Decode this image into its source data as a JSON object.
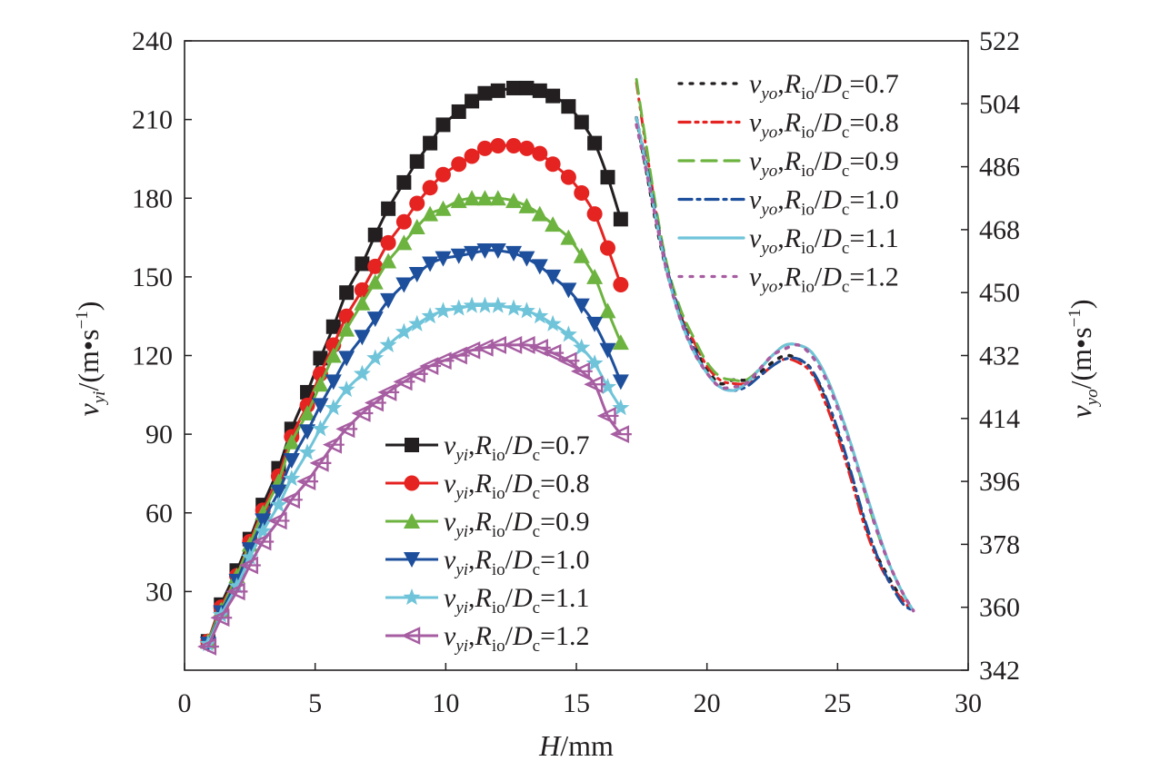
{
  "chart_data": [
    {
      "type": "line",
      "axis": "left",
      "x_label": {
        "main": "H",
        "unit": "/mm"
      },
      "y_label": {
        "var": "v",
        "sub": "yi",
        "unit": "/(m•s",
        "sup": "−1",
        "close": ")"
      },
      "xlim": [
        0,
        30
      ],
      "ylim": [
        0,
        240
      ],
      "x_ticks": [
        0,
        5,
        10,
        15,
        20,
        25,
        30
      ],
      "y_ticks": [
        30,
        60,
        90,
        120,
        150,
        180,
        210,
        240
      ],
      "legend_position": "lower-middle",
      "x": [
        0.9,
        1.4,
        2.0,
        2.5,
        3.0,
        3.6,
        4.1,
        4.7,
        5.2,
        5.7,
        6.2,
        6.8,
        7.3,
        7.8,
        8.4,
        8.9,
        9.4,
        9.9,
        10.5,
        11.0,
        11.5,
        12.0,
        12.6,
        13.1,
        13.6,
        14.1,
        14.7,
        15.2,
        15.7,
        16.2,
        16.7
      ],
      "series": [
        {
          "name": "0.7",
          "color": "#231f20",
          "marker": "square",
          "values": [
            11,
            25,
            38,
            50,
            63,
            77,
            92,
            106,
            119,
            131,
            144,
            155,
            166,
            176,
            186,
            194,
            201,
            208,
            213,
            217,
            220,
            221,
            222,
            222,
            221,
            219,
            215,
            209,
            201,
            188,
            172
          ]
        },
        {
          "name": "0.8",
          "color": "#e52321",
          "marker": "circle",
          "values": [
            11,
            24,
            36,
            49,
            61,
            74,
            89,
            101,
            113,
            124,
            135,
            145,
            154,
            163,
            171,
            178,
            184,
            189,
            193,
            196,
            199,
            200,
            200,
            199,
            197,
            193,
            188,
            182,
            174,
            161,
            147
          ]
        },
        {
          "name": "0.9",
          "color": "#6db33f",
          "marker": "triangle-up",
          "values": [
            11,
            23,
            36,
            48,
            60,
            72,
            87,
            98,
            109,
            120,
            130,
            140,
            148,
            156,
            163,
            169,
            174,
            176,
            179,
            180,
            180,
            180,
            179,
            177,
            174,
            170,
            165,
            158,
            150,
            137,
            125
          ]
        },
        {
          "name": "1.0",
          "color": "#1d4f9c",
          "marker": "triangle-down",
          "values": [
            10,
            22,
            34,
            46,
            57,
            68,
            80,
            91,
            101,
            110,
            119,
            127,
            134,
            141,
            147,
            151,
            155,
            157,
            158,
            159,
            160,
            160,
            159,
            157,
            154,
            150,
            145,
            139,
            132,
            122,
            110
          ]
        },
        {
          "name": "1.1",
          "color": "#6fc4d9",
          "marker": "star",
          "values": [
            10,
            21,
            32,
            43,
            53,
            63,
            73,
            83,
            92,
            100,
            107,
            113,
            119,
            124,
            129,
            132,
            135,
            137,
            138,
            139,
            139,
            139,
            138,
            137,
            135,
            132,
            128,
            123,
            117,
            108,
            100
          ]
        },
        {
          "name": "1.2",
          "color": "#a65da1",
          "marker": "triangle-left",
          "values": [
            9,
            20,
            30,
            40,
            49,
            57,
            65,
            72,
            79,
            86,
            92,
            98,
            102,
            106,
            110,
            113,
            116,
            118,
            120,
            122,
            123,
            124,
            124,
            124,
            123,
            121,
            118,
            114,
            109,
            97,
            90
          ]
        }
      ]
    },
    {
      "type": "line",
      "axis": "right",
      "y_label": {
        "var": "v",
        "sub": "yo",
        "unit": "/(m•s",
        "sup": "−1",
        "close": ")"
      },
      "ylim": [
        342,
        522
      ],
      "y_ticks": [
        342,
        360,
        378,
        396,
        414,
        432,
        450,
        468,
        486,
        504,
        522
      ],
      "legend_position": "top-right",
      "series": [
        {
          "name": "0.7",
          "color": "#231f20",
          "dash": "dotted",
          "x": [
            17.3,
            17.7,
            18.1,
            18.5,
            19.0,
            19.5,
            20.0,
            20.5,
            21.0,
            21.5,
            22.0,
            22.5,
            23.0,
            23.5,
            24.0,
            24.5,
            25.0,
            25.5,
            26.0,
            26.5,
            27.0,
            27.5,
            27.9
          ],
          "values": [
            500,
            484,
            468,
            455,
            443,
            435,
            428,
            424,
            425,
            425,
            427,
            430,
            432,
            431,
            428,
            420,
            410,
            398,
            385,
            375,
            368,
            362,
            359
          ]
        },
        {
          "name": "0.8",
          "color": "#e52321",
          "dash": "dash-dot-dot",
          "x": [
            17.3,
            17.7,
            18.1,
            18.5,
            19.0,
            19.5,
            20.0,
            20.5,
            21.0,
            21.5,
            22.0,
            22.5,
            23.0,
            23.5,
            24.0,
            24.5,
            25.0,
            25.5,
            26.0,
            26.5,
            27.0,
            27.5,
            27.9
          ],
          "values": [
            510,
            490,
            471,
            456,
            444,
            436,
            429,
            425,
            424,
            424,
            426,
            429,
            431,
            430,
            427,
            419,
            409,
            397,
            384,
            374,
            367,
            362,
            359
          ]
        },
        {
          "name": "0.9",
          "color": "#6db33f",
          "dash": "long-dash",
          "x": [
            17.3,
            17.7,
            18.1,
            18.5,
            19.0,
            19.5,
            20.0,
            20.5,
            21.0,
            21.5,
            22.0,
            22.5,
            23.0,
            23.5,
            24.0,
            24.5,
            25.0,
            25.5,
            26.0,
            26.5,
            27.0,
            27.5,
            27.9
          ],
          "values": [
            511,
            491,
            472,
            457,
            445,
            437,
            430,
            426,
            425,
            425,
            428,
            432,
            435,
            435,
            433,
            427,
            418,
            407,
            394,
            382,
            372,
            364,
            359
          ]
        },
        {
          "name": "1.0",
          "color": "#1d4f9c",
          "dash": "dash-dot",
          "x": [
            17.3,
            17.7,
            18.1,
            18.5,
            19.0,
            19.5,
            20.0,
            20.5,
            21.0,
            21.5,
            22.0,
            22.5,
            23.0,
            23.5,
            24.0,
            24.5,
            25.0,
            25.5,
            26.0,
            26.5,
            27.0,
            27.5,
            27.9
          ],
          "values": [
            500,
            486,
            470,
            456,
            443,
            434,
            427,
            423,
            422,
            423,
            426,
            429,
            431,
            431,
            428,
            421,
            411,
            399,
            386,
            375,
            367,
            361,
            359
          ]
        },
        {
          "name": "1.1",
          "color": "#6fc4d9",
          "dash": "solid",
          "x": [
            17.3,
            17.7,
            18.1,
            18.5,
            19.0,
            19.5,
            20.0,
            20.5,
            21.0,
            21.5,
            22.0,
            22.5,
            23.0,
            23.5,
            24.0,
            24.5,
            25.0,
            25.5,
            26.0,
            26.5,
            27.0,
            27.5,
            27.9
          ],
          "values": [
            500,
            485,
            469,
            455,
            442,
            433,
            427,
            423,
            422,
            424,
            428,
            432,
            435,
            435,
            433,
            427,
            418,
            407,
            395,
            383,
            372,
            364,
            359
          ]
        },
        {
          "name": "1.2",
          "color": "#a65da1",
          "dash": "dotted",
          "x": [
            17.3,
            17.7,
            18.1,
            18.5,
            19.0,
            19.5,
            20.0,
            20.5,
            21.0,
            21.5,
            22.0,
            22.5,
            23.0,
            23.5,
            24.0,
            24.5,
            25.0,
            25.5,
            26.0,
            26.5,
            27.0,
            27.5,
            27.9
          ],
          "values": [
            498,
            484,
            469,
            455,
            442,
            433,
            427,
            423,
            423,
            424,
            428,
            432,
            434,
            435,
            432,
            426,
            417,
            406,
            394,
            382,
            372,
            364,
            359
          ]
        }
      ]
    }
  ],
  "legend_text": {
    "R": "R",
    "R_sub": "io",
    "D": "D",
    "D_sub": "c",
    "sep": ",",
    "slash": "/",
    "eq": "="
  }
}
